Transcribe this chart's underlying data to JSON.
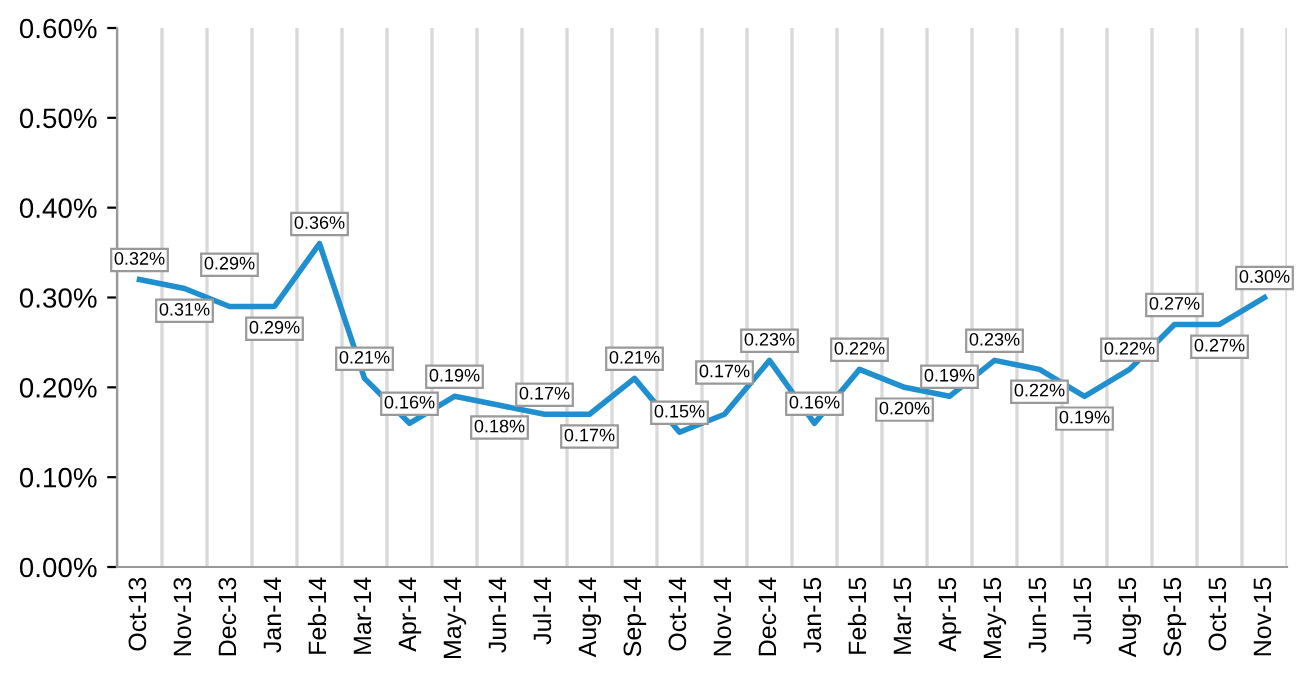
{
  "chart_data": {
    "type": "line",
    "categories": [
      "Oct-13",
      "Nov-13",
      "Dec-13",
      "Jan-14",
      "Feb-14",
      "Mar-14",
      "Apr-14",
      "May-14",
      "Jun-14",
      "Jul-14",
      "Aug-14",
      "Sep-14",
      "Oct-14",
      "Nov-14",
      "Dec-14",
      "Jan-15",
      "Feb-15",
      "Mar-15",
      "Apr-15",
      "May-15",
      "Jun-15",
      "Jul-15",
      "Aug-15",
      "Sep-15",
      "Oct-15",
      "Nov-15"
    ],
    "series": [
      {
        "color": "#1f8fd0",
        "values": [
          0.32,
          0.31,
          0.29,
          0.29,
          0.36,
          0.21,
          0.16,
          0.19,
          0.18,
          0.17,
          0.17,
          0.21,
          0.15,
          0.17,
          0.23,
          0.16,
          0.22,
          0.2,
          0.19,
          0.23,
          0.22,
          0.19,
          0.22,
          0.27,
          0.27,
          0.3
        ],
        "value_labels": [
          "0.32%",
          "0.31%",
          "0.29%",
          "0.29%",
          "0.36%",
          "0.21%",
          "0.16%",
          "0.19%",
          "0.18%",
          "0.17%",
          "0.17%",
          "0.21%",
          "0.15%",
          "0.17%",
          "0.23%",
          "0.16%",
          "0.22%",
          "0.20%",
          "0.19%",
          "0.23%",
          "0.22%",
          "0.19%",
          "0.22%",
          "0.27%",
          "0.27%",
          "0.30%"
        ]
      }
    ],
    "ylim": [
      0,
      0.6
    ],
    "yticks": [
      {
        "value": 0,
        "label": "0.00%"
      },
      {
        "value": 0.1,
        "label": "0.10%"
      },
      {
        "value": 0.2,
        "label": "0.20%"
      },
      {
        "value": 0.3,
        "label": "0.30%"
      },
      {
        "value": 0.4,
        "label": "0.40%"
      },
      {
        "value": 0.5,
        "label": "0.50%"
      },
      {
        "value": 0.6,
        "label": "0.60%"
      }
    ],
    "grid": "x",
    "legend": false,
    "marker": "none",
    "line_style": "solid"
  }
}
